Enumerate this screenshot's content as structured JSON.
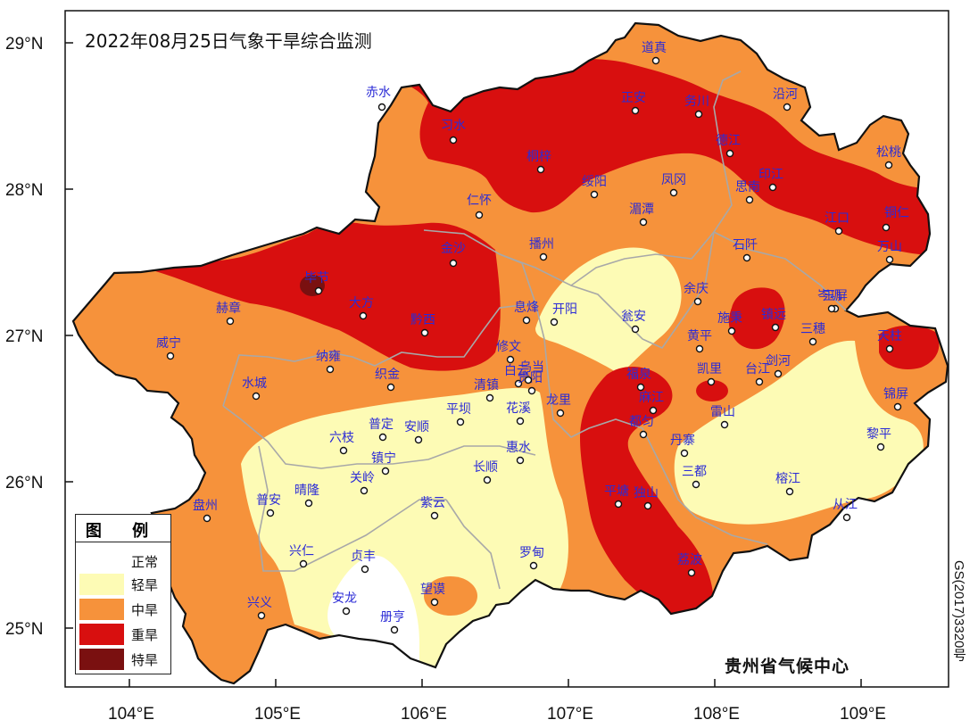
{
  "title": "2022年08月25日气象干旱综合监测",
  "credit": "贵州省气候中心",
  "map_number": "GS(2017)3320号",
  "lat_labels": [
    "29°N",
    "28°N",
    "27°N",
    "26°N",
    "25°N"
  ],
  "lon_labels": [
    "104°E",
    "105°E",
    "106°E",
    "107°E",
    "108°E",
    "109°E"
  ],
  "legend": {
    "title": "图 例",
    "items": [
      {
        "label": "正常",
        "color": "#ffffff"
      },
      {
        "label": "轻旱",
        "color": "#fdfbb5"
      },
      {
        "label": "中旱",
        "color": "#f6923b"
      },
      {
        "label": "重旱",
        "color": "#d80f0f"
      },
      {
        "label": "特旱",
        "color": "#7a1010"
      }
    ]
  },
  "cities": [
    "道真",
    "正安",
    "务川",
    "沿河",
    "赤水",
    "习水",
    "德江",
    "松桃",
    "桐梓",
    "绥阳",
    "凤冈",
    "思南",
    "印江",
    "仁怀",
    "湄潭",
    "江口",
    "铜仁",
    "金沙",
    "播州",
    "石阡",
    "万山",
    "毕节",
    "余庆",
    "玉屏",
    "大方",
    "岑巩",
    "赫章",
    "黔西",
    "息烽",
    "开阳",
    "瓮安",
    "施秉",
    "镇远",
    "三穗",
    "天柱",
    "威宁",
    "黄平",
    "修文",
    "纳雍",
    "织金",
    "白云",
    "清镇",
    "贵阳",
    "乌当",
    "福泉",
    "剑河",
    "台江",
    "凯里",
    "麻江",
    "锦屏",
    "水城",
    "普定",
    "平坝",
    "花溪",
    "龙里",
    "都匀",
    "雷山",
    "六枝",
    "安顺",
    "黎平",
    "镇宁",
    "惠水",
    "丹寨",
    "关岭",
    "长顺",
    "三都",
    "榕江",
    "普安",
    "晴隆",
    "紫云",
    "平塘",
    "独山",
    "从江",
    "盘州",
    "兴仁",
    "贞丰",
    "罗甸",
    "荔波",
    "望谟",
    "安龙",
    "兴义",
    "册亨"
  ]
}
